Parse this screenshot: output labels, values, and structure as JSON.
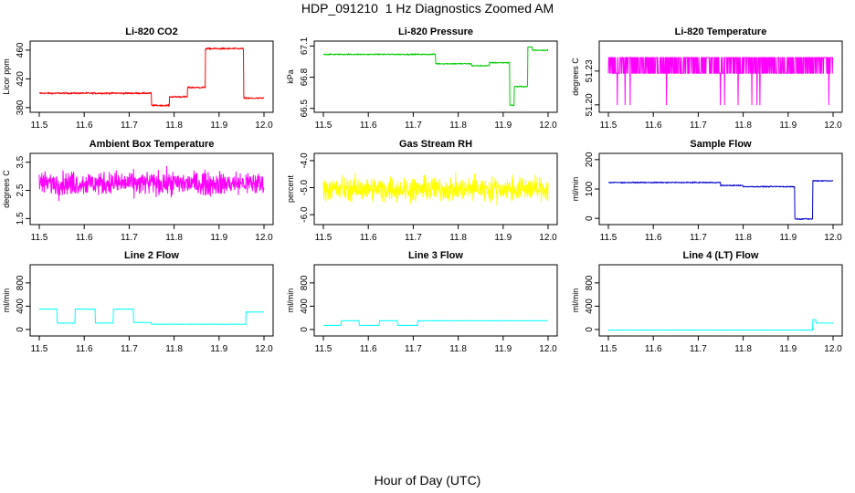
{
  "figure": {
    "title": "HDP_091210  1 Hz Diagnostics Zoomed AM",
    "xlabel": "Hour of Day (UTC)"
  },
  "chart_data": [
    {
      "type": "line",
      "title": "Li-820 CO2",
      "ylabel": "Licor ppm",
      "color": "#ff0000",
      "xlim": [
        11.5,
        12.0
      ],
      "ylim": [
        376,
        470
      ],
      "xticks": [
        11.5,
        11.6,
        11.7,
        11.8,
        11.9,
        12.0
      ],
      "xtick_labels": [
        "11.5",
        "11.6",
        "11.7",
        "11.8",
        "11.9",
        "12.0"
      ],
      "yticks": [
        380,
        420,
        460
      ],
      "ytick_labels": [
        "380",
        "420",
        "460"
      ],
      "series": [
        {
          "noise": 1.2,
          "segments": [
            [
              11.5,
              11.75,
              400
            ],
            [
              11.75,
              11.79,
              383
            ],
            [
              11.79,
              11.83,
              395
            ],
            [
              11.83,
              11.87,
              408
            ],
            [
              11.87,
              11.955,
              462
            ],
            [
              11.955,
              12.0,
              393
            ]
          ]
        }
      ]
    },
    {
      "type": "line",
      "title": "Li-820 Pressure",
      "ylabel": "kPa",
      "color": "#00cd00",
      "xlim": [
        11.5,
        12.0
      ],
      "ylim": [
        66.48,
        67.13
      ],
      "xticks": [
        11.5,
        11.6,
        11.7,
        11.8,
        11.9,
        12.0
      ],
      "xtick_labels": [
        "11.5",
        "11.6",
        "11.7",
        "11.8",
        "11.9",
        "12.0"
      ],
      "yticks": [
        66.5,
        66.8,
        67.1
      ],
      "ytick_labels": [
        "66.5",
        "66.8",
        "67.1"
      ],
      "series": [
        {
          "noise": 0.006,
          "segments": [
            [
              11.5,
              11.75,
              67.02
            ],
            [
              11.75,
              11.77,
              66.93
            ],
            [
              11.77,
              11.83,
              66.93
            ],
            [
              11.83,
              11.87,
              66.91
            ],
            [
              11.87,
              11.915,
              66.94
            ],
            [
              11.915,
              11.925,
              66.53
            ],
            [
              11.925,
              11.955,
              66.71
            ],
            [
              11.955,
              11.965,
              67.09
            ],
            [
              11.965,
              12.0,
              67.06
            ]
          ]
        }
      ]
    },
    {
      "type": "line",
      "title": "Li-820 Temperature",
      "ylabel": "degrees C",
      "color": "#ff00ff",
      "xlim": [
        11.5,
        12.0
      ],
      "ylim": [
        51.195,
        51.255
      ],
      "xticks": [
        11.5,
        11.6,
        11.7,
        11.8,
        11.9,
        12.0
      ],
      "xtick_labels": [
        "11.5",
        "11.6",
        "11.7",
        "11.8",
        "11.9",
        "12.0"
      ],
      "yticks": [
        51.2,
        51.23
      ],
      "ytick_labels": [
        "51.20",
        "51.23"
      ],
      "series": [
        {
          "mode": "quantized",
          "levels": [
            51.242,
            51.228
          ],
          "low_level": 51.2,
          "segments": [
            [
              11.5,
              12.0,
              51.235
            ]
          ]
        }
      ]
    },
    {
      "type": "line",
      "title": "Ambient Box Temperature",
      "ylabel": "degrees C",
      "color": "#ff00ff",
      "xlim": [
        11.5,
        12.0
      ],
      "ylim": [
        1.35,
        3.75
      ],
      "xticks": [
        11.5,
        11.6,
        11.7,
        11.8,
        11.9,
        12.0
      ],
      "xtick_labels": [
        "11.5",
        "11.6",
        "11.7",
        "11.8",
        "11.9",
        "12.0"
      ],
      "yticks": [
        1.5,
        2.5,
        3.5
      ],
      "ytick_labels": [
        "1.5",
        "2.5",
        "3.5"
      ],
      "series": [
        {
          "noise": 0.42,
          "segments": [
            [
              11.5,
              12.0,
              2.75
            ]
          ]
        }
      ]
    },
    {
      "type": "line",
      "title": "Gas Stream RH",
      "ylabel": "percent",
      "color": "#ffff00",
      "xlim": [
        11.5,
        12.0
      ],
      "ylim": [
        -6.3,
        -3.8
      ],
      "xticks": [
        11.5,
        11.6,
        11.7,
        11.8,
        11.9,
        12.0
      ],
      "xtick_labels": [
        "11.5",
        "11.6",
        "11.7",
        "11.8",
        "11.9",
        "12.0"
      ],
      "yticks": [
        -6.0,
        -5.0,
        -4.0
      ],
      "ytick_labels": [
        "-6.0",
        "-5.0",
        "-4.0"
      ],
      "series": [
        {
          "noise": 0.45,
          "segments": [
            [
              11.5,
              12.0,
              -5.05
            ]
          ]
        }
      ]
    },
    {
      "type": "line",
      "title": "Sample Flow",
      "ylabel": "ml/min",
      "color": "#0000cd",
      "xlim": [
        11.5,
        12.0
      ],
      "ylim": [
        -15,
        215
      ],
      "xticks": [
        11.5,
        11.6,
        11.7,
        11.8,
        11.9,
        12.0
      ],
      "xtick_labels": [
        "11.5",
        "11.6",
        "11.7",
        "11.8",
        "11.9",
        "12.0"
      ],
      "yticks": [
        0,
        100,
        200
      ],
      "ytick_labels": [
        "0",
        "100",
        "200"
      ],
      "series": [
        {
          "noise": 2,
          "segments": [
            [
              11.5,
              11.75,
              122
            ],
            [
              11.75,
              11.8,
              112
            ],
            [
              11.8,
              11.915,
              108
            ],
            [
              11.915,
              11.955,
              -2
            ],
            [
              11.955,
              12.0,
              128
            ]
          ]
        }
      ]
    },
    {
      "type": "line",
      "title": "Line 2 Flow",
      "ylabel": "ml/min",
      "color": "#00ffff",
      "xlim": [
        11.5,
        12.0
      ],
      "ylim": [
        -80,
        1080
      ],
      "xticks": [
        11.5,
        11.6,
        11.7,
        11.8,
        11.9,
        12.0
      ],
      "xtick_labels": [
        "11.5",
        "11.6",
        "11.7",
        "11.8",
        "11.9",
        "12.0"
      ],
      "yticks": [
        0,
        400,
        800
      ],
      "ytick_labels": [
        "0",
        "400",
        "800"
      ],
      "series": [
        {
          "noise": 4,
          "segments": [
            [
              11.5,
              11.54,
              350
            ],
            [
              11.54,
              11.58,
              110
            ],
            [
              11.58,
              11.625,
              350
            ],
            [
              11.625,
              11.665,
              110
            ],
            [
              11.665,
              11.71,
              350
            ],
            [
              11.71,
              11.75,
              120
            ],
            [
              11.75,
              11.96,
              90
            ],
            [
              11.96,
              12.0,
              300
            ]
          ]
        }
      ]
    },
    {
      "type": "line",
      "title": "Line 3 Flow",
      "ylabel": "ml/min",
      "color": "#00ffff",
      "xlim": [
        11.5,
        12.0
      ],
      "ylim": [
        -80,
        1080
      ],
      "xticks": [
        11.5,
        11.6,
        11.7,
        11.8,
        11.9,
        12.0
      ],
      "xtick_labels": [
        "11.5",
        "11.6",
        "11.7",
        "11.8",
        "11.9",
        "12.0"
      ],
      "yticks": [
        0,
        400,
        800
      ],
      "ytick_labels": [
        "0",
        "400",
        "800"
      ],
      "series": [
        {
          "noise": 3,
          "segments": [
            [
              11.5,
              11.54,
              70
            ],
            [
              11.54,
              11.58,
              150
            ],
            [
              11.58,
              11.625,
              70
            ],
            [
              11.625,
              11.665,
              150
            ],
            [
              11.665,
              11.71,
              70
            ],
            [
              11.71,
              12.0,
              150
            ]
          ]
        }
      ]
    },
    {
      "type": "line",
      "title": "Line 4 (LT) Flow",
      "ylabel": "ml/min",
      "color": "#00ffff",
      "xlim": [
        11.5,
        12.0
      ],
      "ylim": [
        -80,
        1080
      ],
      "xticks": [
        11.5,
        11.6,
        11.7,
        11.8,
        11.9,
        12.0
      ],
      "xtick_labels": [
        "11.5",
        "11.6",
        "11.7",
        "11.8",
        "11.9",
        "12.0"
      ],
      "yticks": [
        0,
        400,
        800
      ],
      "ytick_labels": [
        "0",
        "400",
        "800"
      ],
      "series": [
        {
          "noise": 2,
          "segments": [
            [
              11.5,
              11.955,
              -10
            ],
            [
              11.955,
              11.962,
              170
            ],
            [
              11.962,
              12.0,
              110
            ]
          ]
        }
      ]
    }
  ]
}
